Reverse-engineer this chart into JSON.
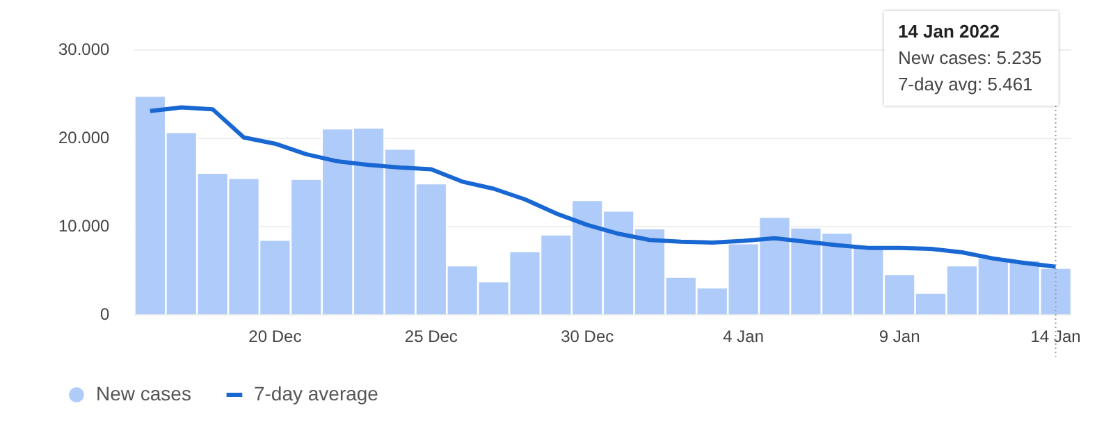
{
  "chart_data": {
    "type": "bar",
    "categories": [
      null,
      null,
      null,
      null,
      "20 Dec",
      null,
      null,
      null,
      null,
      "25 Dec",
      null,
      null,
      null,
      null,
      "30 Dec",
      null,
      null,
      null,
      null,
      "4 Jan",
      null,
      null,
      null,
      null,
      "9 Jan",
      null,
      null,
      null,
      null,
      "14 Jan"
    ],
    "series": [
      {
        "name": "New cases",
        "color": "#aecbfa",
        "values": [
          24700,
          20600,
          16000,
          15400,
          8400,
          15300,
          21000,
          21100,
          18700,
          14800,
          5500,
          3700,
          7100,
          9000,
          12900,
          11700,
          9700,
          4200,
          3000,
          8000,
          11000,
          9800,
          9200,
          7700,
          4500,
          2400,
          5500,
          6400,
          6100,
          5235
        ]
      },
      {
        "name": "7-day average",
        "type": "line",
        "color": "#1967d2",
        "values": [
          23100,
          23500,
          23300,
          20100,
          19400,
          18200,
          17400,
          17000,
          16700,
          16500,
          15100,
          14300,
          13100,
          11500,
          10200,
          9200,
          8500,
          8300,
          8200,
          8400,
          8700,
          8300,
          7900,
          7600,
          7600,
          7500,
          7100,
          6400,
          5900,
          5461
        ]
      }
    ],
    "ylim": [
      0,
      30000
    ],
    "yticks": [
      {
        "value": 0,
        "label": "0"
      },
      {
        "value": 10000,
        "label": "10.000"
      },
      {
        "value": 20000,
        "label": "20.000"
      },
      {
        "value": 30000,
        "label": "30.000"
      }
    ],
    "grid": "y",
    "legend": "bottom left",
    "marker": "none",
    "line_style": "solid",
    "ref_lines": [
      {
        "axis": "x",
        "value": "14 Jan",
        "line_style": "dotted",
        "color": "#9e9e9e"
      }
    ],
    "annotations": [
      "14 Jan 2022",
      "New cases: 5.235",
      "7-day avg: 5.461"
    ]
  }
}
